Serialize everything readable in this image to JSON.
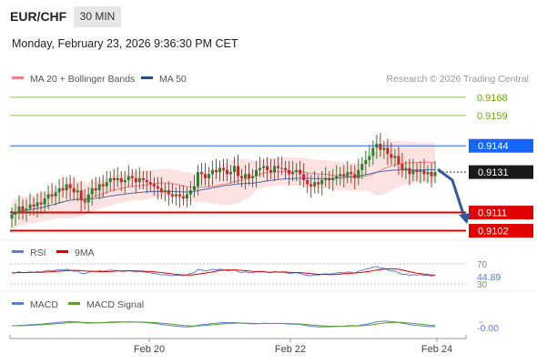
{
  "header": {
    "pair": "EUR/CHF",
    "timeframe": "30 MIN",
    "datetime": "Monday, February 23, 2026 9:36:30 PM CET"
  },
  "main_legend": [
    {
      "label": "MA 20 + Bollinger Bands",
      "color": "#f08080"
    },
    {
      "label": "MA 50",
      "color": "#2b4f8c"
    }
  ],
  "research_credit": "Research © 2026 Trading Central",
  "colors": {
    "up": "#2e7d32",
    "down": "#c62828",
    "resistance": "#2962ff",
    "support": "#e00000",
    "target": "#8bc34a",
    "arrow": "#2f5a9a",
    "band_fill": "#fcd8d8",
    "ma20": "#f08080",
    "ma50": "#4a6fa5",
    "rsi": "#5b7fd6",
    "rsi_ma": "#e00000",
    "macd": "#5b7fd6",
    "macd_signal": "#5aa02c"
  },
  "levels": [
    {
      "value": "0.9168",
      "type": "target"
    },
    {
      "value": "0.9159",
      "type": "target"
    },
    {
      "value": "0.9144",
      "type": "resistance"
    },
    {
      "value": "0.9131",
      "type": "last"
    },
    {
      "value": "0.9111",
      "type": "support"
    },
    {
      "value": "0.9102",
      "type": "support"
    }
  ],
  "rsi_panel": {
    "legend": [
      {
        "label": "RSI",
        "color": "#5b7fd6"
      },
      {
        "label": "9MA",
        "color": "#e00000"
      }
    ],
    "labels": {
      "upper": "70",
      "value": "44.89",
      "lower": "30"
    },
    "rsi_current": 44.89
  },
  "macd_panel": {
    "legend": [
      {
        "label": "MACD",
        "color": "#5b7fd6"
      },
      {
        "label": "MACD Signal",
        "color": "#5aa02c"
      }
    ],
    "value_label": "-0.00"
  },
  "x_axis": {
    "ticks": [
      "Feb 20",
      "Feb 22",
      "Feb 24"
    ]
  },
  "chart_data": {
    "type": "candlestick",
    "symbol": "EUR/CHF",
    "interval": "30 MIN",
    "ylim": [
      0.91,
      0.9172
    ],
    "levels": [
      0.9168,
      0.9159,
      0.9144,
      0.9131,
      0.9111,
      0.9102
    ],
    "closes": [
      0.911,
      0.9111,
      0.9114,
      0.9112,
      0.9113,
      0.9115,
      0.9114,
      0.9116,
      0.9115,
      0.9118,
      0.912,
      0.9119,
      0.9121,
      0.9123,
      0.9122,
      0.9125,
      0.9123,
      0.9121,
      0.9122,
      0.9117,
      0.9116,
      0.912,
      0.9123,
      0.9122,
      0.9125,
      0.9124,
      0.9126,
      0.9128,
      0.9127,
      0.9128,
      0.9126,
      0.9127,
      0.9129,
      0.9128,
      0.9126,
      0.9128,
      0.9127,
      0.9126,
      0.9125,
      0.9124,
      0.9123,
      0.9121,
      0.9122,
      0.912,
      0.9119,
      0.912,
      0.9119,
      0.9118,
      0.912,
      0.9122,
      0.9124,
      0.9131,
      0.913,
      0.9128,
      0.913,
      0.9132,
      0.9131,
      0.9133,
      0.9132,
      0.913,
      0.9131,
      0.9134,
      0.9129,
      0.9128,
      0.913,
      0.9128,
      0.9129,
      0.9132,
      0.9133,
      0.9134,
      0.9132,
      0.9131,
      0.9134,
      0.9133,
      0.9133,
      0.9132,
      0.913,
      0.9131,
      0.9132,
      0.913,
      0.9127,
      0.9125,
      0.9124,
      0.9126,
      0.9125,
      0.9127,
      0.9128,
      0.9127,
      0.9128,
      0.9129,
      0.913,
      0.9129,
      0.9131,
      0.913,
      0.9128,
      0.9132,
      0.9135,
      0.9137,
      0.9139,
      0.9143,
      0.9145,
      0.9142,
      0.9143,
      0.914,
      0.9138,
      0.9139,
      0.9135,
      0.9132,
      0.9133,
      0.913,
      0.9132,
      0.9131,
      0.9132,
      0.913,
      0.9131,
      0.9129,
      0.9131
    ],
    "ma_periods": [
      20,
      50
    ],
    "bollinger_std": 2
  }
}
